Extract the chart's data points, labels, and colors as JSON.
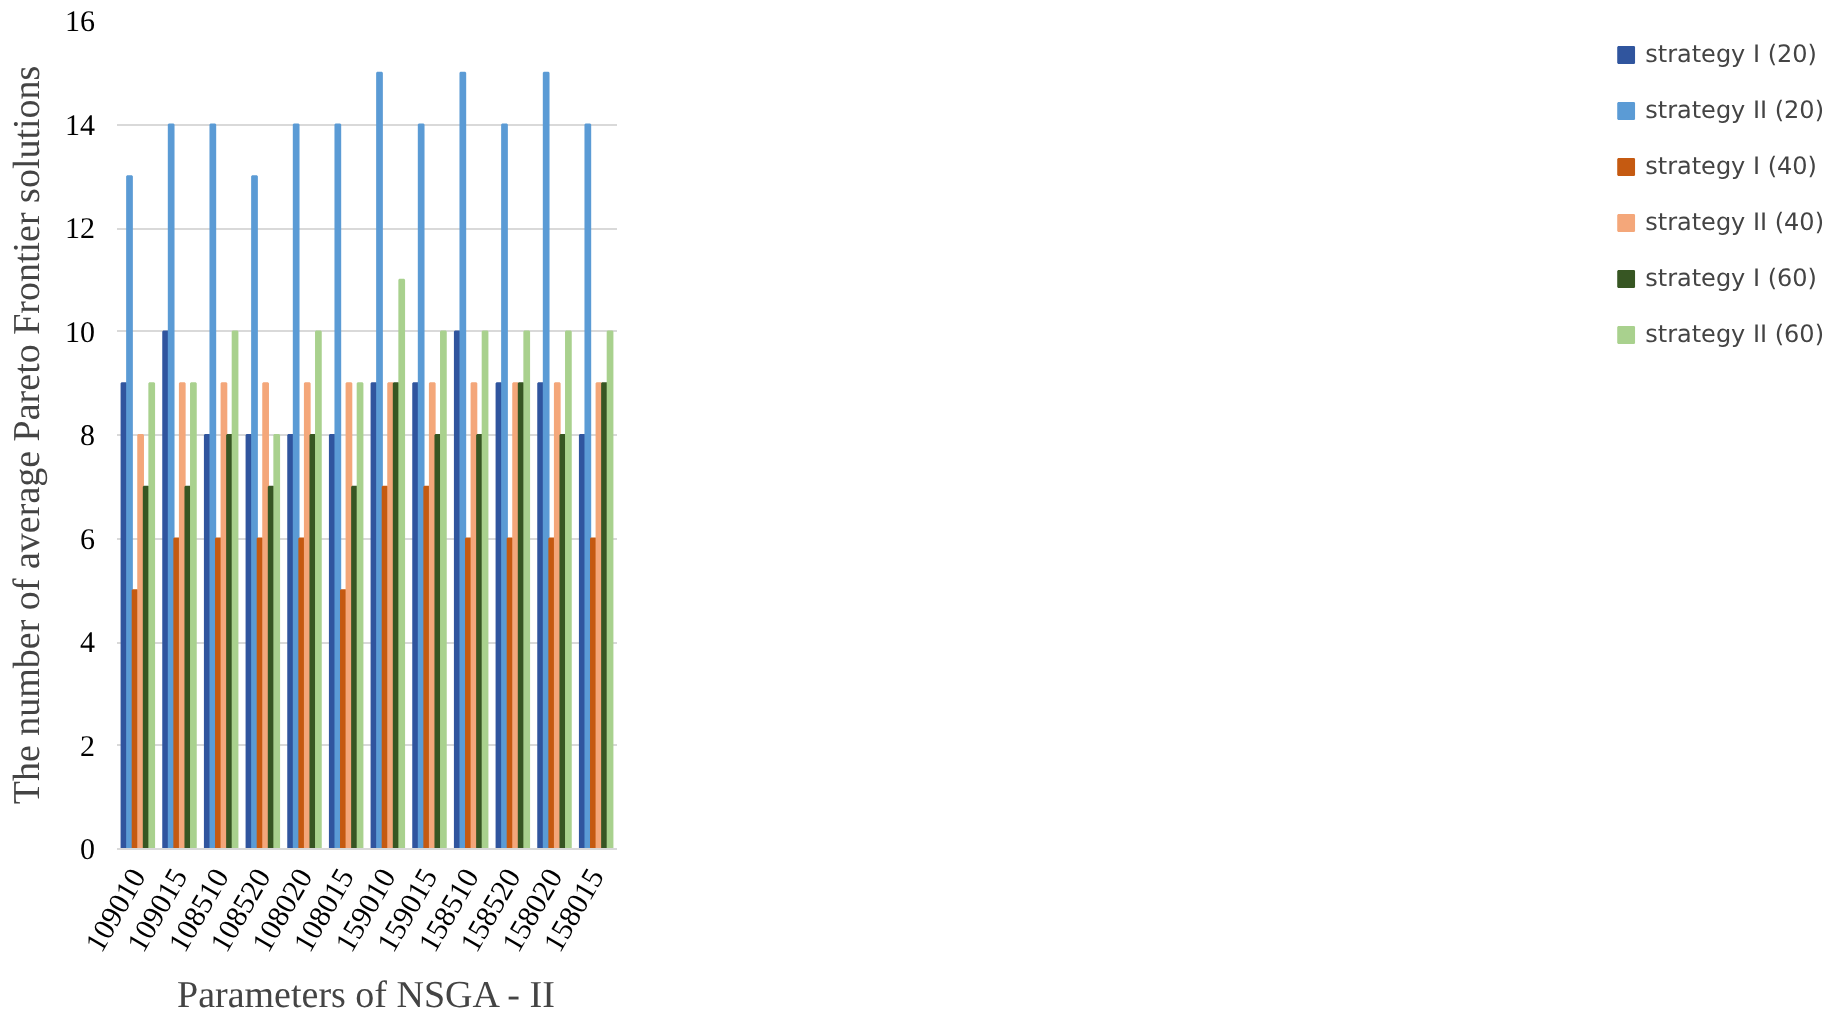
{
  "chart_data": {
    "type": "bar",
    "xlabel": "Parameters of NSGA - II",
    "ylabel": "The number of average Pareto Frontier solutions",
    "categories": [
      "109010",
      "109015",
      "108510",
      "108520",
      "108020",
      "108015",
      "159010",
      "159015",
      "158510",
      "158520",
      "158020",
      "158015"
    ],
    "series": [
      {
        "name": "strategy I (20)",
        "color": "#30559e",
        "values": [
          9,
          10,
          8,
          8,
          8,
          8,
          9,
          9,
          10,
          9,
          9,
          8
        ]
      },
      {
        "name": "strategy II (20)",
        "color": "#5b9bd5",
        "values": [
          13,
          14,
          14,
          13,
          14,
          14,
          15,
          14,
          15,
          14,
          15,
          14
        ]
      },
      {
        "name": "strategy I (40)",
        "color": "#c55a11",
        "values": [
          5,
          6,
          6,
          6,
          6,
          5,
          7,
          7,
          6,
          6,
          6,
          6
        ]
      },
      {
        "name": "strategy II (40)",
        "color": "#f4a77a",
        "values": [
          8,
          9,
          9,
          9,
          9,
          9,
          9,
          9,
          9,
          9,
          9,
          9
        ]
      },
      {
        "name": "strategy I (60)",
        "color": "#375623",
        "values": [
          7,
          7,
          8,
          7,
          8,
          7,
          9,
          8,
          8,
          9,
          8,
          9
        ]
      },
      {
        "name": "strategy II (60)",
        "color": "#a9d18e",
        "values": [
          9,
          9,
          10,
          8,
          10,
          9,
          11,
          10,
          10,
          10,
          10,
          10
        ]
      }
    ],
    "ylim": [
      0,
      16
    ],
    "yticks": [
      0,
      2,
      4,
      6,
      8,
      10,
      12,
      14,
      16
    ],
    "grid": "y",
    "legend": "right"
  }
}
